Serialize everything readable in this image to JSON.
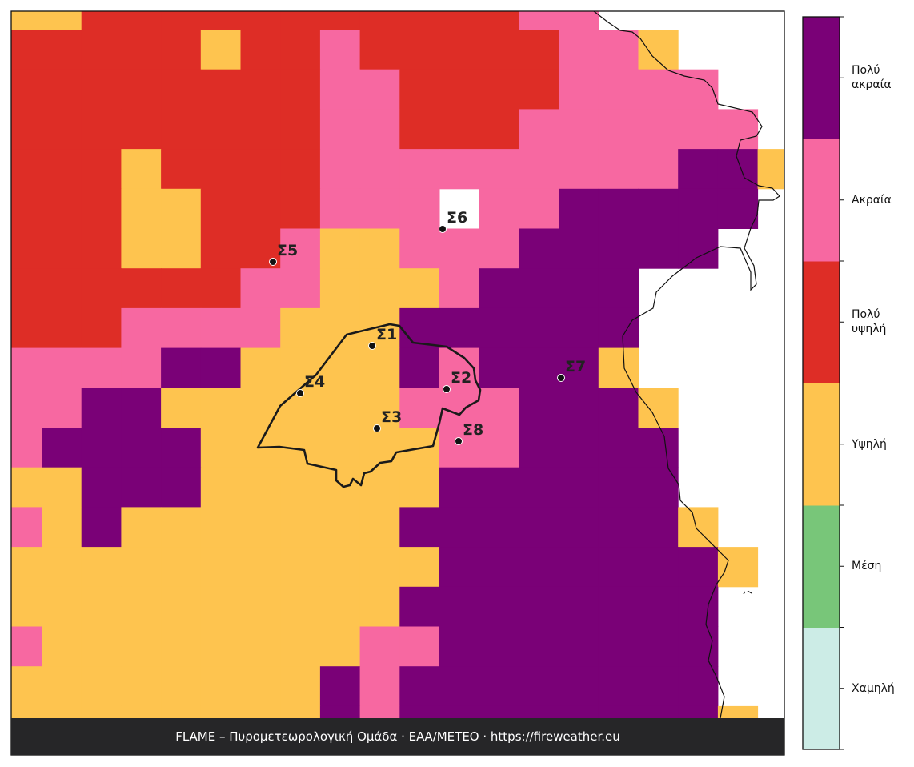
{
  "map": {
    "stations": [
      "Σ1",
      "Σ2",
      "Σ3",
      "Σ4",
      "Σ5",
      "Σ6",
      "Σ7",
      "Σ8"
    ],
    "legend": {
      "classes": [
        {
          "label": "Χαμηλή",
          "color": "#ccece6"
        },
        {
          "label": "Μέση",
          "color": "#78c679"
        },
        {
          "label": "Υψηλή",
          "color": "#fec44f"
        },
        {
          "label": "Πολύ υψηλή",
          "color": "#de2d26"
        },
        {
          "label": "Ακραία",
          "color": "#f768a1"
        },
        {
          "label": "Πολύ ακραία",
          "color": "#7a0177"
        }
      ]
    },
    "danger_grid": [
      [
        2,
        2,
        3,
        3,
        3,
        3,
        3,
        3,
        3,
        3,
        3,
        3,
        3,
        4,
        4,
        null,
        null,
        null,
        null,
        null
      ],
      [
        3,
        3,
        3,
        3,
        3,
        2,
        3,
        3,
        4,
        3,
        3,
        3,
        3,
        3,
        4,
        4,
        2,
        null,
        null,
        null
      ],
      [
        3,
        3,
        3,
        3,
        3,
        3,
        3,
        3,
        4,
        4,
        3,
        3,
        3,
        3,
        4,
        4,
        4,
        4,
        null,
        null
      ],
      [
        3,
        3,
        3,
        3,
        3,
        3,
        3,
        3,
        4,
        4,
        3,
        3,
        3,
        4,
        4,
        4,
        4,
        4,
        4,
        null
      ],
      [
        3,
        3,
        3,
        2,
        3,
        3,
        3,
        3,
        4,
        4,
        4,
        4,
        4,
        4,
        4,
        4,
        4,
        5,
        5,
        2
      ],
      [
        3,
        3,
        3,
        2,
        2,
        3,
        3,
        3,
        4,
        4,
        4,
        null,
        4,
        4,
        5,
        5,
        5,
        5,
        5,
        null
      ],
      [
        3,
        3,
        3,
        2,
        2,
        3,
        3,
        4,
        2,
        2,
        4,
        4,
        4,
        5,
        5,
        5,
        5,
        5,
        null,
        null
      ],
      [
        3,
        3,
        3,
        3,
        3,
        3,
        4,
        4,
        2,
        2,
        2,
        4,
        5,
        5,
        5,
        5,
        null,
        null,
        null,
        null
      ],
      [
        3,
        3,
        3,
        4,
        4,
        4,
        4,
        2,
        2,
        2,
        5,
        5,
        5,
        5,
        5,
        5,
        null,
        null,
        null,
        null
      ],
      [
        4,
        4,
        4,
        4,
        5,
        5,
        2,
        2,
        2,
        2,
        5,
        4,
        5,
        5,
        5,
        2,
        null,
        null,
        null,
        null
      ],
      [
        4,
        4,
        5,
        5,
        2,
        2,
        2,
        2,
        2,
        2,
        4,
        4,
        4,
        5,
        5,
        5,
        2,
        null,
        null,
        null
      ],
      [
        4,
        5,
        5,
        5,
        5,
        2,
        2,
        2,
        2,
        2,
        2,
        4,
        4,
        5,
        5,
        5,
        5,
        null,
        null,
        null
      ],
      [
        2,
        2,
        5,
        5,
        5,
        2,
        2,
        2,
        2,
        2,
        2,
        5,
        5,
        5,
        5,
        5,
        5,
        null,
        null,
        null
      ],
      [
        4,
        2,
        5,
        2,
        2,
        2,
        2,
        2,
        2,
        2,
        5,
        5,
        5,
        5,
        5,
        5,
        5,
        2,
        null,
        null
      ],
      [
        2,
        2,
        2,
        2,
        2,
        2,
        2,
        2,
        2,
        2,
        2,
        5,
        5,
        5,
        5,
        5,
        5,
        5,
        2,
        null
      ],
      [
        2,
        2,
        2,
        2,
        2,
        2,
        2,
        2,
        2,
        2,
        5,
        5,
        5,
        5,
        5,
        5,
        5,
        5,
        null,
        null
      ],
      [
        4,
        2,
        2,
        2,
        2,
        2,
        2,
        2,
        2,
        4,
        4,
        5,
        5,
        5,
        5,
        5,
        5,
        5,
        null,
        null
      ],
      [
        2,
        2,
        2,
        2,
        2,
        2,
        2,
        2,
        5,
        4,
        5,
        5,
        5,
        5,
        5,
        5,
        5,
        5,
        null,
        null
      ],
      [
        2,
        2,
        2,
        2,
        2,
        2,
        2,
        2,
        5,
        4,
        5,
        5,
        5,
        5,
        5,
        5,
        5,
        5,
        2,
        null
      ]
    ]
  },
  "footer": "FLAME – Πυρομετεωρολογική Ομάδα · ΕΑΑ/METEO · https://fireweather.eu"
}
